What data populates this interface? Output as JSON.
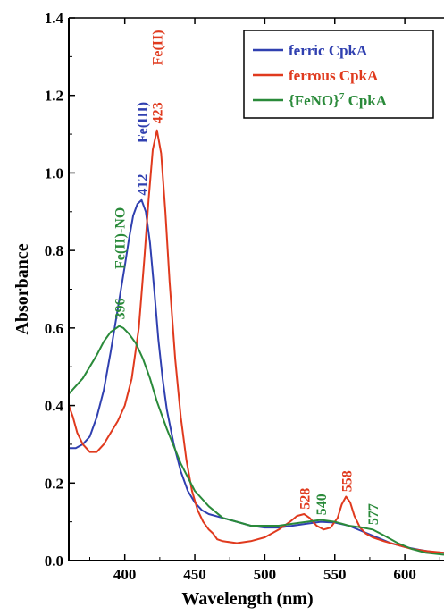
{
  "chart_data": {
    "type": "line",
    "title": "",
    "xlabel": "Wavelength (nm)",
    "ylabel": "Absorbance",
    "xlim": [
      360,
      628
    ],
    "ylim": [
      0.0,
      1.4
    ],
    "xticks": [
      400,
      450,
      500,
      550,
      600
    ],
    "yticks": [
      0.0,
      0.2,
      0.4,
      0.6,
      0.8,
      1.0,
      1.2,
      1.4
    ],
    "xtick_labels": [
      "400",
      "450",
      "500",
      "550",
      "600"
    ],
    "ytick_labels": [
      "0.0",
      "0.2",
      "0.4",
      "0.6",
      "0.8",
      "1.0",
      "1.2",
      "1.4"
    ],
    "grid": false,
    "legend_position": "top-right",
    "legend": [
      {
        "text": "ferric CpkA",
        "series": 0
      },
      {
        "text": "ferrous CpkA",
        "series": 1
      },
      {
        "text": "{FeNO}",
        "sup": "7",
        "suffix": " CpkA",
        "series": 2
      }
    ],
    "series": [
      {
        "name": "ferric CpkA",
        "color": "#3040b0",
        "x": [
          360,
          365,
          370,
          375,
          380,
          385,
          390,
          395,
          400,
          403,
          406,
          409,
          412,
          415,
          418,
          421,
          424,
          427,
          430,
          435,
          440,
          445,
          450,
          455,
          460,
          470,
          480,
          490,
          500,
          510,
          520,
          530,
          540,
          550,
          560,
          570,
          580,
          590,
          600,
          610,
          620,
          628
        ],
        "y": [
          0.29,
          0.29,
          0.3,
          0.32,
          0.37,
          0.44,
          0.54,
          0.65,
          0.76,
          0.83,
          0.89,
          0.92,
          0.93,
          0.9,
          0.82,
          0.7,
          0.57,
          0.47,
          0.39,
          0.3,
          0.23,
          0.18,
          0.15,
          0.13,
          0.12,
          0.11,
          0.1,
          0.09,
          0.085,
          0.085,
          0.09,
          0.095,
          0.1,
          0.098,
          0.09,
          0.075,
          0.06,
          0.045,
          0.035,
          0.028,
          0.022,
          0.02
        ]
      },
      {
        "name": "ferrous CpkA",
        "color": "#e03a1e",
        "x": [
          360,
          363,
          366,
          370,
          375,
          380,
          385,
          390,
          395,
          400,
          405,
          410,
          414,
          417,
          420,
          423,
          426,
          429,
          432,
          436,
          440,
          444,
          448,
          452,
          456,
          460,
          463,
          466,
          470,
          480,
          490,
          500,
          510,
          518,
          523,
          528,
          532,
          537,
          542,
          547,
          552,
          555,
          558,
          561,
          564,
          568,
          572,
          577,
          585,
          595,
          605,
          615,
          628
        ],
        "y": [
          0.4,
          0.37,
          0.33,
          0.3,
          0.28,
          0.28,
          0.3,
          0.33,
          0.36,
          0.4,
          0.47,
          0.6,
          0.78,
          0.93,
          1.06,
          1.11,
          1.05,
          0.9,
          0.72,
          0.52,
          0.37,
          0.26,
          0.18,
          0.13,
          0.1,
          0.08,
          0.07,
          0.055,
          0.05,
          0.045,
          0.05,
          0.06,
          0.08,
          0.1,
          0.115,
          0.12,
          0.11,
          0.09,
          0.08,
          0.085,
          0.11,
          0.145,
          0.165,
          0.15,
          0.115,
          0.085,
          0.07,
          0.06,
          0.05,
          0.04,
          0.03,
          0.025,
          0.02
        ]
      },
      {
        "name": "{FeNO}7 CpkA",
        "color": "#2a8a3a",
        "x": [
          360,
          365,
          370,
          375,
          380,
          385,
          390,
          394,
          396,
          399,
          403,
          408,
          413,
          418,
          423,
          430,
          440,
          450,
          460,
          470,
          480,
          490,
          500,
          510,
          520,
          530,
          540,
          550,
          560,
          570,
          577,
          585,
          595,
          605,
          615,
          628
        ],
        "y": [
          0.43,
          0.45,
          0.47,
          0.5,
          0.53,
          0.565,
          0.59,
          0.6,
          0.605,
          0.6,
          0.585,
          0.56,
          0.52,
          0.47,
          0.41,
          0.34,
          0.25,
          0.18,
          0.14,
          0.11,
          0.1,
          0.09,
          0.09,
          0.09,
          0.095,
          0.1,
          0.105,
          0.1,
          0.09,
          0.085,
          0.08,
          0.065,
          0.045,
          0.03,
          0.02,
          0.015
        ]
      }
    ],
    "annotations": [
      {
        "text": "412",
        "x": 412,
        "y": 0.935,
        "rotate": true,
        "series": 0
      },
      {
        "text": "Fe(III)",
        "x": 412,
        "y": 1.07,
        "rotate": true,
        "series": 0
      },
      {
        "text": "423",
        "x": 423,
        "y": 1.12,
        "rotate": true,
        "series": 1
      },
      {
        "text": "Fe(II)",
        "x": 423,
        "y": 1.27,
        "rotate": true,
        "series": 1
      },
      {
        "text": "396",
        "x": 396,
        "y": 0.615,
        "rotate": true,
        "series": 2
      },
      {
        "text": "Fe(II)-NO",
        "x": 396,
        "y": 0.745,
        "rotate": true,
        "series": 2
      },
      {
        "text": "528",
        "x": 528,
        "y": 0.125,
        "rotate": true,
        "series": 1
      },
      {
        "text": "540",
        "x": 540,
        "y": 0.11,
        "rotate": true,
        "series": 2
      },
      {
        "text": "558",
        "x": 558,
        "y": 0.17,
        "rotate": true,
        "series": 1
      },
      {
        "text": "577",
        "x": 577,
        "y": 0.085,
        "rotate": true,
        "series": 2
      }
    ]
  }
}
